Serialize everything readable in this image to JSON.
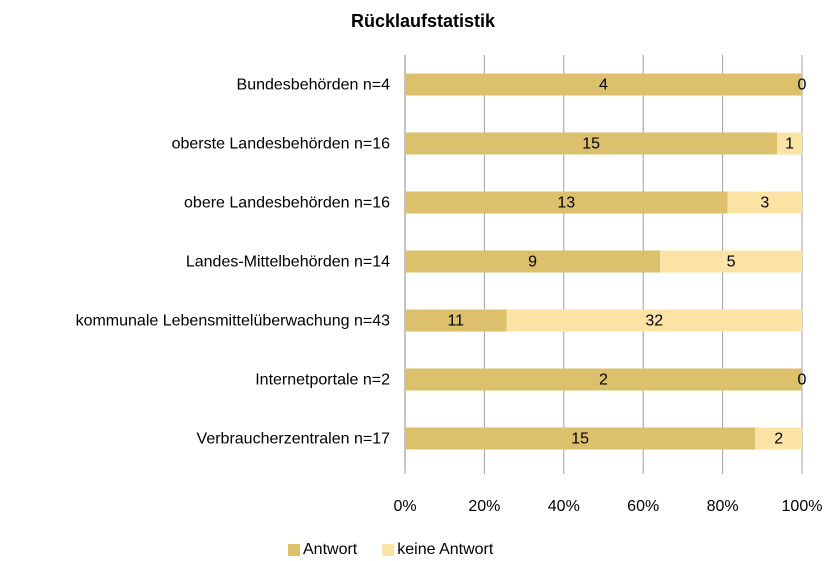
{
  "chart_data": {
    "type": "bar",
    "orientation": "horizontal",
    "stacked": "percent",
    "title": "Rücklaufstatistik",
    "categories": [
      "Bundesbehörden n=4",
      "oberste Landesbehörden n=16",
      "obere Landesbehörden n=16",
      "Landes-Mittelbehörden n=14",
      "kommunale Lebensmittelüberwachung n=43",
      "Internetportale n=2",
      "Verbraucherzentralen n=17"
    ],
    "series": [
      {
        "name": "Antwort",
        "color": "#dcc06b",
        "values": [
          4,
          15,
          13,
          9,
          11,
          2,
          15
        ]
      },
      {
        "name": "keine Antwort",
        "color": "#fbe3a5",
        "values": [
          0,
          1,
          3,
          5,
          32,
          0,
          2
        ]
      }
    ],
    "xlim": [
      0,
      100
    ],
    "xticks": [
      {
        "value": 0,
        "label": "0%"
      },
      {
        "value": 20,
        "label": "20%"
      },
      {
        "value": 40,
        "label": "40%"
      },
      {
        "value": 60,
        "label": "60%"
      },
      {
        "value": 80,
        "label": "80%"
      },
      {
        "value": 100,
        "label": "100%"
      }
    ],
    "grid": true,
    "legend": "bottom"
  }
}
